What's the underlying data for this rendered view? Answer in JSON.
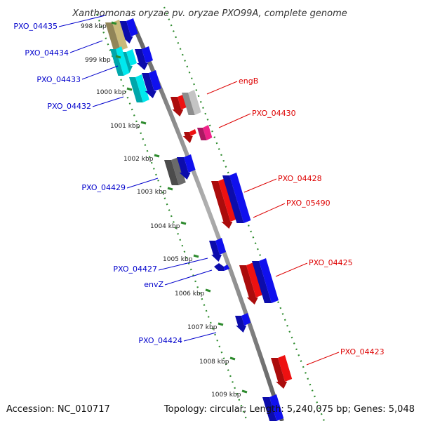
{
  "title": "Xanthomonas oryzae pv. oryzae PXO99A, complete genome",
  "footer": {
    "accession": "Accession: NC_010717",
    "summary": "Topology: circular; Length: 5,240,075 bp; Genes: 5,048"
  },
  "colors": {
    "background": "#ffffff",
    "backbone": "#8c8c8c",
    "tick": "#2e8b2e",
    "forward_label": "#0000cc",
    "reverse_label": "#dd0000",
    "blue": "#1010ee",
    "cyan": "#00e8ee",
    "tan": "#c9b97a",
    "red": "#ee1111",
    "lightgray": "#c4c4c4",
    "darkgray": "#6a6a6a",
    "magenta": "#ee2288"
  },
  "scale_labels": [
    "998 kbp",
    "999 kbp",
    "1000 kbp",
    "1001 kbp",
    "1002 kbp",
    "1003 kbp",
    "1004 kbp",
    "1005 kbp",
    "1006 kbp",
    "1007 kbp",
    "1008 kbp",
    "1009 kbp"
  ],
  "forward_labels": [
    "PXO_04435",
    "PXO_04434",
    "PXO_04433",
    "PXO_04432",
    "PXO_04429",
    "PXO_04427",
    "envZ",
    "PXO_04424"
  ],
  "reverse_labels": [
    "engB",
    "PXO_04430",
    "PXO_04428",
    "PXO_05490",
    "PXO_04425",
    "PXO_04423"
  ],
  "features": [
    {
      "name": "PXO_04435",
      "strand": "forward",
      "color": "blue"
    },
    {
      "name": "PXO_04434",
      "strand": "forward",
      "color": "tan"
    },
    {
      "name": "PXO_04434",
      "strand": "forward",
      "color": "cyan"
    },
    {
      "name": "PXO_04434",
      "strand": "forward",
      "color": "blue"
    },
    {
      "name": "PXO_04433",
      "strand": "forward",
      "color": "cyan"
    },
    {
      "name": "PXO_04432",
      "strand": "forward",
      "color": "cyan"
    },
    {
      "name": "PXO_04432",
      "strand": "forward",
      "color": "blue"
    },
    {
      "name": "engB",
      "strand": "reverse",
      "color": "red"
    },
    {
      "name": "engB",
      "strand": "reverse",
      "color": "lightgray"
    },
    {
      "name": "PXO_04430",
      "strand": "reverse",
      "color": "red"
    },
    {
      "name": "PXO_04430",
      "strand": "reverse",
      "color": "magenta"
    },
    {
      "name": "PXO_04429",
      "strand": "forward",
      "color": "darkgray"
    },
    {
      "name": "PXO_04429",
      "strand": "forward",
      "color": "blue"
    },
    {
      "name": "PXO_04428",
      "strand": "reverse",
      "color": "red"
    },
    {
      "name": "PXO_05490",
      "strand": "reverse",
      "color": "blue"
    },
    {
      "name": "PXO_04427",
      "strand": "forward",
      "color": "blue"
    },
    {
      "name": "envZ",
      "strand": "forward",
      "color": "blue"
    },
    {
      "name": "PXO_04425",
      "strand": "reverse",
      "color": "red"
    },
    {
      "name": "PXO_04425",
      "strand": "reverse",
      "color": "blue"
    },
    {
      "name": "PXO_04424",
      "strand": "forward",
      "color": "blue"
    },
    {
      "name": "PXO_04423",
      "strand": "reverse",
      "color": "red"
    },
    {
      "name": "PXO_04423",
      "strand": "reverse",
      "color": "blue"
    }
  ]
}
